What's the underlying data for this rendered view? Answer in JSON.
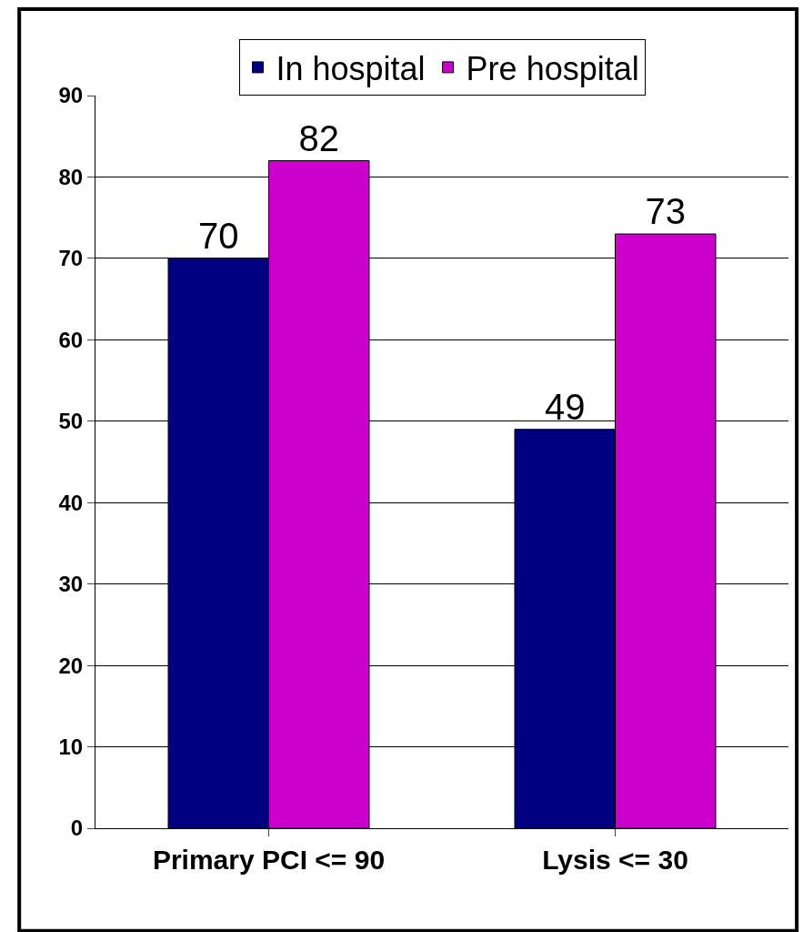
{
  "chart_data": {
    "type": "bar",
    "categories": [
      "Primary PCI <= 90",
      "Lysis <= 30"
    ],
    "series": [
      {
        "name": "In hospital",
        "color": "#000080",
        "values": [
          70,
          49
        ]
      },
      {
        "name": "Pre hospital",
        "color": "#cc00cc",
        "values": [
          82,
          73
        ]
      }
    ],
    "ylim": [
      0,
      90
    ],
    "yticks": [
      0,
      10,
      20,
      30,
      40,
      50,
      60,
      70,
      80,
      90
    ],
    "grid": "y",
    "legend": "top",
    "data_labels": true
  }
}
